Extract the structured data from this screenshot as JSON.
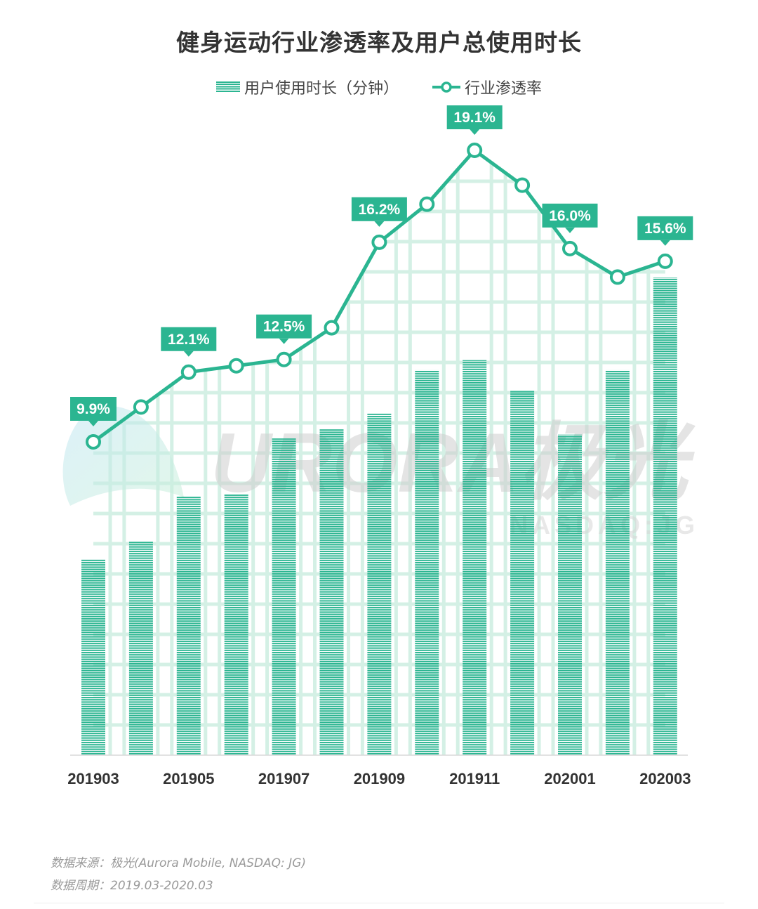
{
  "chart_data": {
    "type": "bar+line",
    "title": "健身运动行业渗透率及用户总使用时长",
    "categories": [
      "201903",
      "201904",
      "201905",
      "201906",
      "201907",
      "201908",
      "201909",
      "201910",
      "201911",
      "201912",
      "202001",
      "202002",
      "202003"
    ],
    "tick_labels": [
      "201903",
      "201905",
      "201907",
      "201909",
      "201911",
      "202001",
      "202003"
    ],
    "series": [
      {
        "name": "用户使用时长（分钟）",
        "type": "bar",
        "values": [
          41,
          44.7,
          54.2,
          54.6,
          66.3,
          68.3,
          71.5,
          80.6,
          82.7,
          76.4,
          67.1,
          80.6,
          100
        ]
      },
      {
        "name": "行业渗透率",
        "type": "line",
        "unit": "%",
        "values": [
          9.9,
          11.0,
          12.1,
          12.3,
          12.5,
          13.5,
          16.2,
          17.4,
          19.1,
          18.0,
          16.0,
          15.1,
          15.6
        ],
        "labels": [
          "9.9%",
          null,
          "12.1%",
          null,
          "12.5%",
          null,
          "16.2%",
          null,
          "19.1%",
          null,
          "16.0%",
          null,
          "15.6%"
        ]
      }
    ],
    "colors": {
      "primary": "#2bb591",
      "grid": "#d4f0e5"
    },
    "legend_position": "top-center",
    "grid": true
  },
  "legend": {
    "bar_label": "用户使用时长（分钟）",
    "line_label": "行业渗透率"
  },
  "watermark": {
    "brand": "URORA极光",
    "sub": "NASDAQ:JG"
  },
  "footer": {
    "source": "数据来源：极光(Aurora Mobile, NASDAQ: JG)",
    "period": "数据周期：2019.03-2020.03"
  }
}
